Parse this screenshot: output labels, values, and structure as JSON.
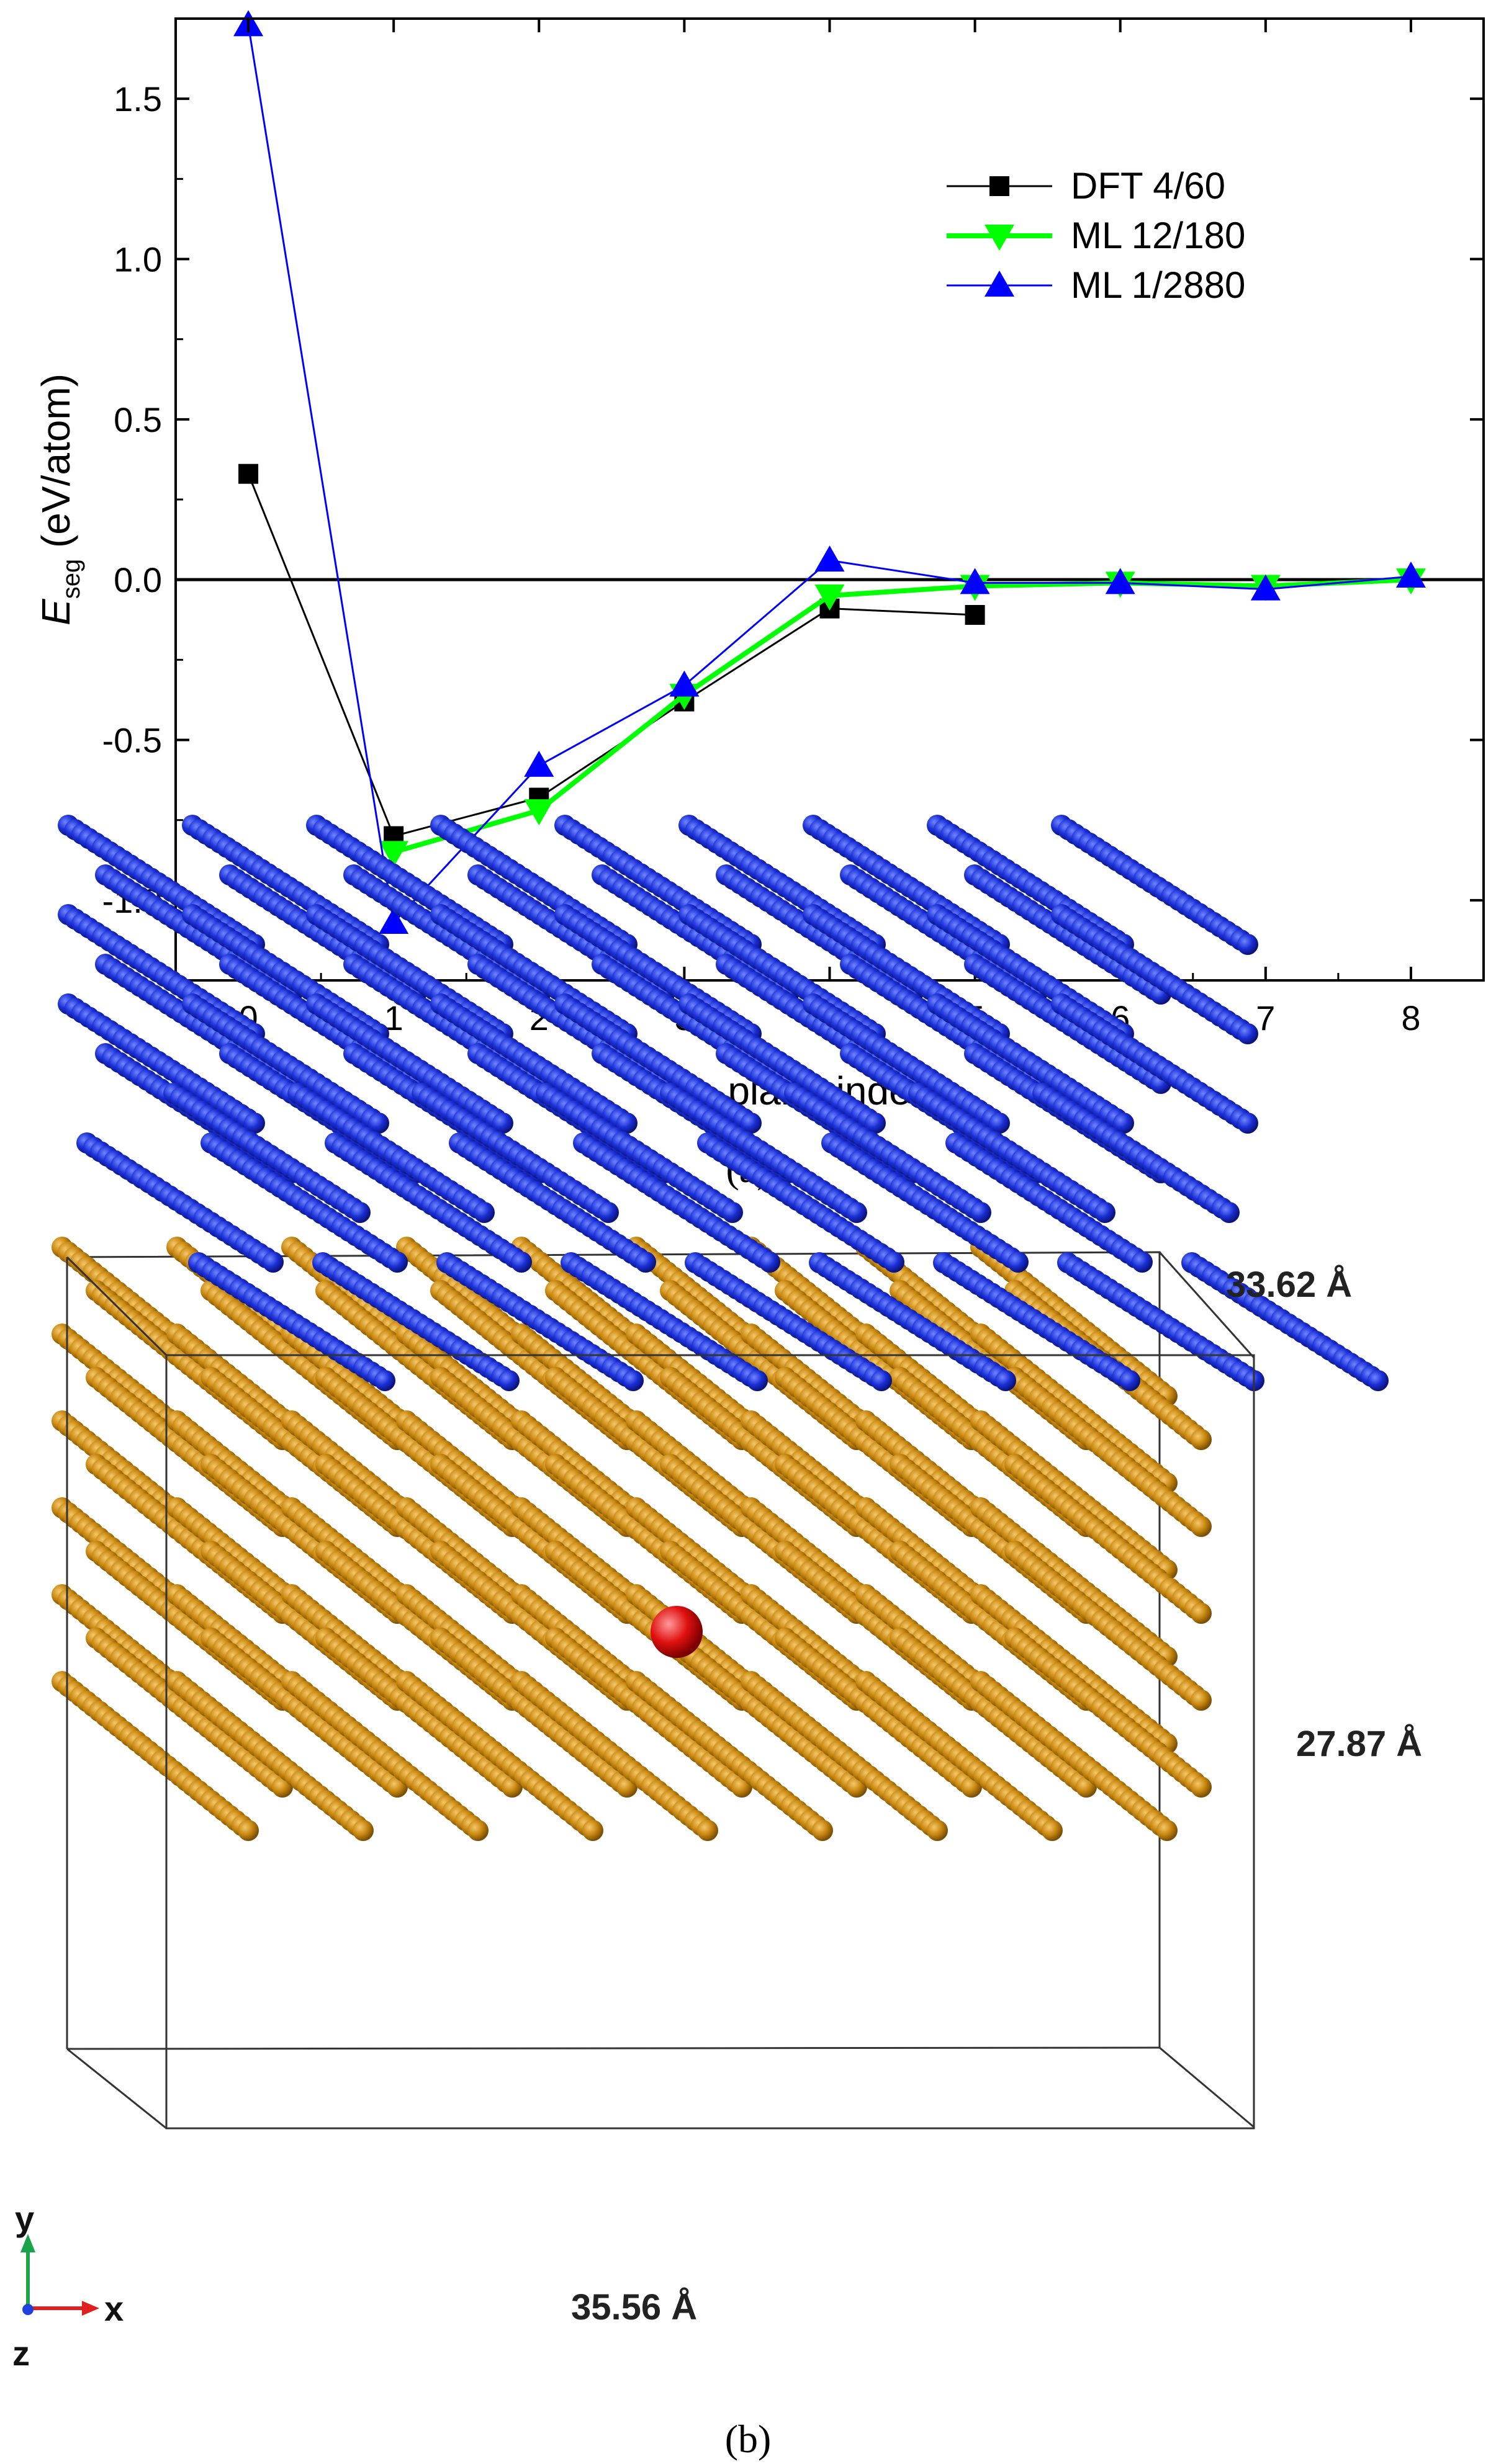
{
  "chart_data": {
    "type": "line",
    "xlabel": "plane index",
    "ylabel_main": "E",
    "ylabel_sub": "seg",
    "ylabel_rest": " (eV/atom)",
    "xlim": [
      -0.5,
      8.5
    ],
    "ylim": [
      -1.25,
      1.75
    ],
    "xticks": [
      0,
      1,
      2,
      3,
      4,
      5,
      6,
      7,
      8
    ],
    "yticks": [
      -1.0,
      -0.5,
      0.0,
      0.5,
      1.0,
      1.5
    ],
    "ytick_labels": [
      "-1.0",
      "-0.5",
      "0.0",
      "0.5",
      "1.0",
      "1.5"
    ],
    "zero_line": true,
    "legend_position": "top-right",
    "series": [
      {
        "name": "DFT 4/60",
        "color": "#000000",
        "marker": "square",
        "x": [
          0,
          1,
          2,
          3,
          4,
          5
        ],
        "y": [
          0.33,
          -0.8,
          -0.68,
          -0.38,
          -0.09,
          -0.11
        ]
      },
      {
        "name": "ML 12/180",
        "color": "#00ff00",
        "marker": "triangle-down",
        "x": [
          1,
          2,
          3,
          4,
          5,
          6,
          7,
          8
        ],
        "y": [
          -0.85,
          -0.72,
          -0.36,
          -0.05,
          -0.02,
          -0.01,
          -0.02,
          0.0
        ]
      },
      {
        "name": "ML 1/2880",
        "color": "#0000ff",
        "marker": "triangle-up",
        "x": [
          0,
          1,
          2,
          3,
          4,
          5,
          6,
          7,
          8
        ],
        "y": [
          1.73,
          -1.07,
          -0.58,
          -0.33,
          0.06,
          -0.01,
          -0.01,
          -0.03,
          0.01
        ]
      }
    ]
  },
  "panel_a_caption": "(a)",
  "panel_b_caption": "(b)",
  "structure": {
    "dim_depth": "33.62 Å",
    "dim_height": "27.87 Å",
    "dim_width": "35.56 Å",
    "axis_y": "y",
    "axis_x": "x",
    "axis_z": "z",
    "colors": {
      "top_grain": "#1a2fd6",
      "bottom_grain": "#c8870f",
      "solute": "#e01010"
    }
  }
}
